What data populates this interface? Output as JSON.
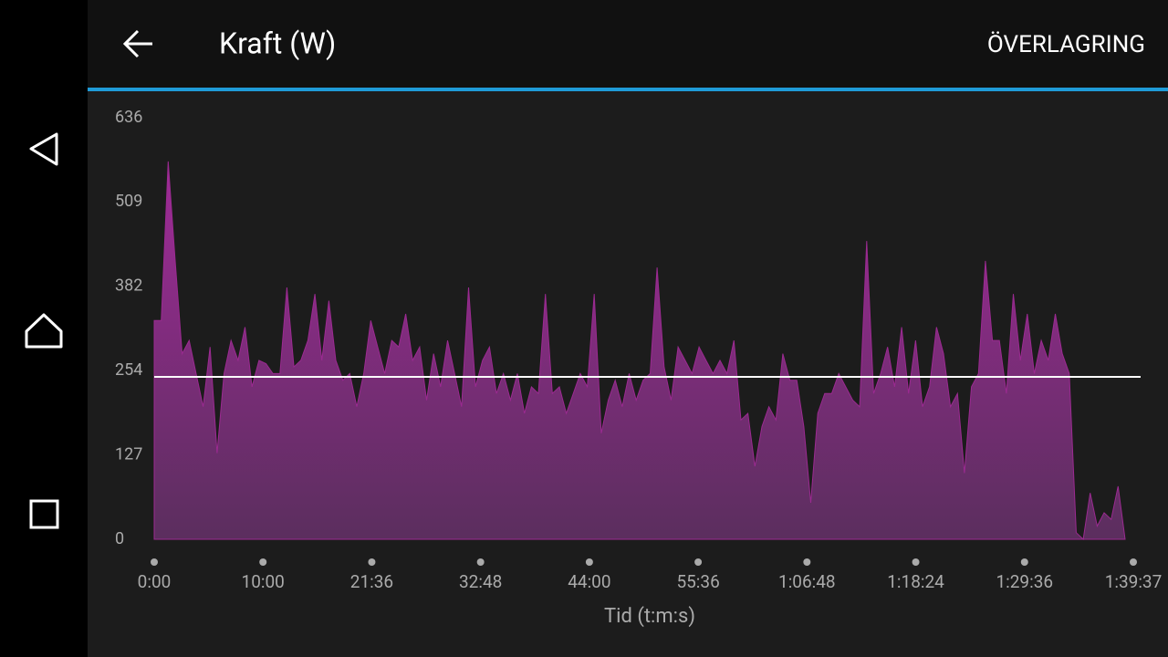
{
  "header": {
    "title": "Kraft (W)",
    "action": "ÖVERLAGRING"
  },
  "chart_data": {
    "type": "area",
    "x_label": "Tid (t:m:s)",
    "x_tick_labels": [
      "0:00",
      "10:00",
      "21:36",
      "32:48",
      "44:00",
      "55:36",
      "1:06:48",
      "1:18:24",
      "1:29:36",
      "1:39:37"
    ],
    "ylim": [
      0,
      636
    ],
    "yticks": [
      0,
      127,
      254,
      382,
      509,
      636
    ],
    "reference_line": 245,
    "color": "#9b2a91",
    "values": [
      330,
      330,
      570,
      420,
      280,
      300,
      250,
      200,
      290,
      130,
      250,
      300,
      270,
      320,
      230,
      270,
      265,
      250,
      250,
      380,
      260,
      270,
      300,
      370,
      270,
      360,
      270,
      240,
      250,
      200,
      250,
      330,
      290,
      250,
      300,
      290,
      340,
      270,
      290,
      210,
      280,
      230,
      300,
      250,
      200,
      380,
      230,
      270,
      290,
      220,
      250,
      210,
      250,
      190,
      230,
      220,
      370,
      220,
      230,
      190,
      220,
      250,
      230,
      370,
      160,
      210,
      240,
      200,
      250,
      210,
      240,
      250,
      410,
      260,
      210,
      290,
      270,
      250,
      290,
      270,
      250,
      270,
      250,
      300,
      180,
      190,
      110,
      170,
      200,
      180,
      280,
      240,
      240,
      170,
      55,
      190,
      220,
      220,
      250,
      230,
      210,
      200,
      450,
      220,
      250,
      290,
      230,
      320,
      220,
      300,
      200,
      230,
      320,
      280,
      200,
      220,
      100,
      230,
      250,
      420,
      300,
      300,
      220,
      370,
      270,
      340,
      250,
      300,
      270,
      340,
      280,
      250,
      10,
      0,
      70,
      20,
      40,
      30,
      80,
      0
    ]
  }
}
